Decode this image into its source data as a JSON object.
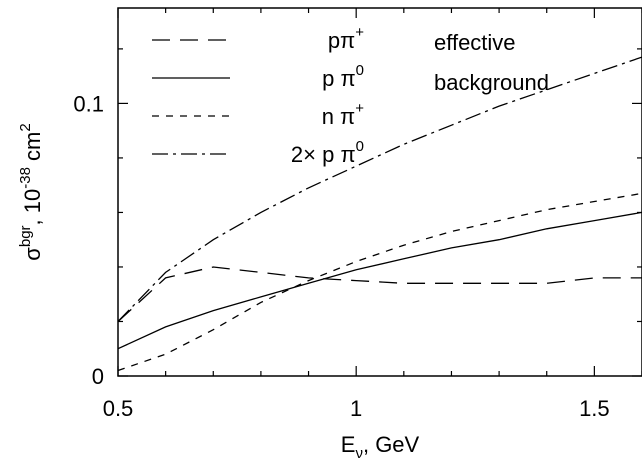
{
  "chart_data": {
    "type": "line",
    "xlabel": "E",
    "xlabel_sub": "ν",
    "xlabel_tail": ", GeV",
    "ylabel_sigma": "σ",
    "ylabel_sup": "bgr",
    "ylabel_mid": ", 10",
    "ylabel_exp": "-38",
    "ylabel_unit": " cm",
    "ylabel_unit_exp": "2",
    "xlim": [
      0.5,
      1.6
    ],
    "ylim": [
      0,
      0.135
    ],
    "xticks": [
      0.5,
      1,
      1.5
    ],
    "xtick_labels": [
      "0.5",
      "1",
      "1.5"
    ],
    "yticks": [
      0,
      0.1
    ],
    "ytick_labels": [
      "0",
      "0.1"
    ],
    "annotation": [
      "effective",
      "background"
    ],
    "legend_position": "top-left",
    "series": [
      {
        "name": "pπ",
        "name_sup": "+",
        "dash": "dashed",
        "x": [
          0.5,
          0.6,
          0.7,
          0.8,
          0.9,
          1.0,
          1.1,
          1.2,
          1.3,
          1.4,
          1.5,
          1.6
        ],
        "y": [
          0.02,
          0.036,
          0.04,
          0.038,
          0.036,
          0.035,
          0.034,
          0.034,
          0.034,
          0.034,
          0.036,
          0.036
        ]
      },
      {
        "name": "p π",
        "name_sup": "0",
        "dash": "solid",
        "x": [
          0.5,
          0.6,
          0.7,
          0.8,
          0.9,
          1.0,
          1.1,
          1.2,
          1.3,
          1.4,
          1.5,
          1.6
        ],
        "y": [
          0.01,
          0.018,
          0.024,
          0.029,
          0.034,
          0.039,
          0.043,
          0.047,
          0.05,
          0.054,
          0.057,
          0.06
        ]
      },
      {
        "name": "n π",
        "name_sup": "+",
        "dash": "short-dashed",
        "x": [
          0.5,
          0.6,
          0.7,
          0.8,
          0.9,
          1.0,
          1.1,
          1.2,
          1.3,
          1.4,
          1.5,
          1.6
        ],
        "y": [
          0.002,
          0.008,
          0.017,
          0.027,
          0.035,
          0.042,
          0.048,
          0.053,
          0.057,
          0.061,
          0.064,
          0.067
        ]
      },
      {
        "name": "2× p π",
        "name_sup": "0",
        "dash": "dash-dot",
        "x": [
          0.5,
          0.6,
          0.7,
          0.8,
          0.9,
          1.0,
          1.1,
          1.2,
          1.3,
          1.4,
          1.5,
          1.6
        ],
        "y": [
          0.02,
          0.038,
          0.05,
          0.06,
          0.069,
          0.077,
          0.085,
          0.092,
          0.099,
          0.105,
          0.111,
          0.117
        ]
      }
    ]
  }
}
